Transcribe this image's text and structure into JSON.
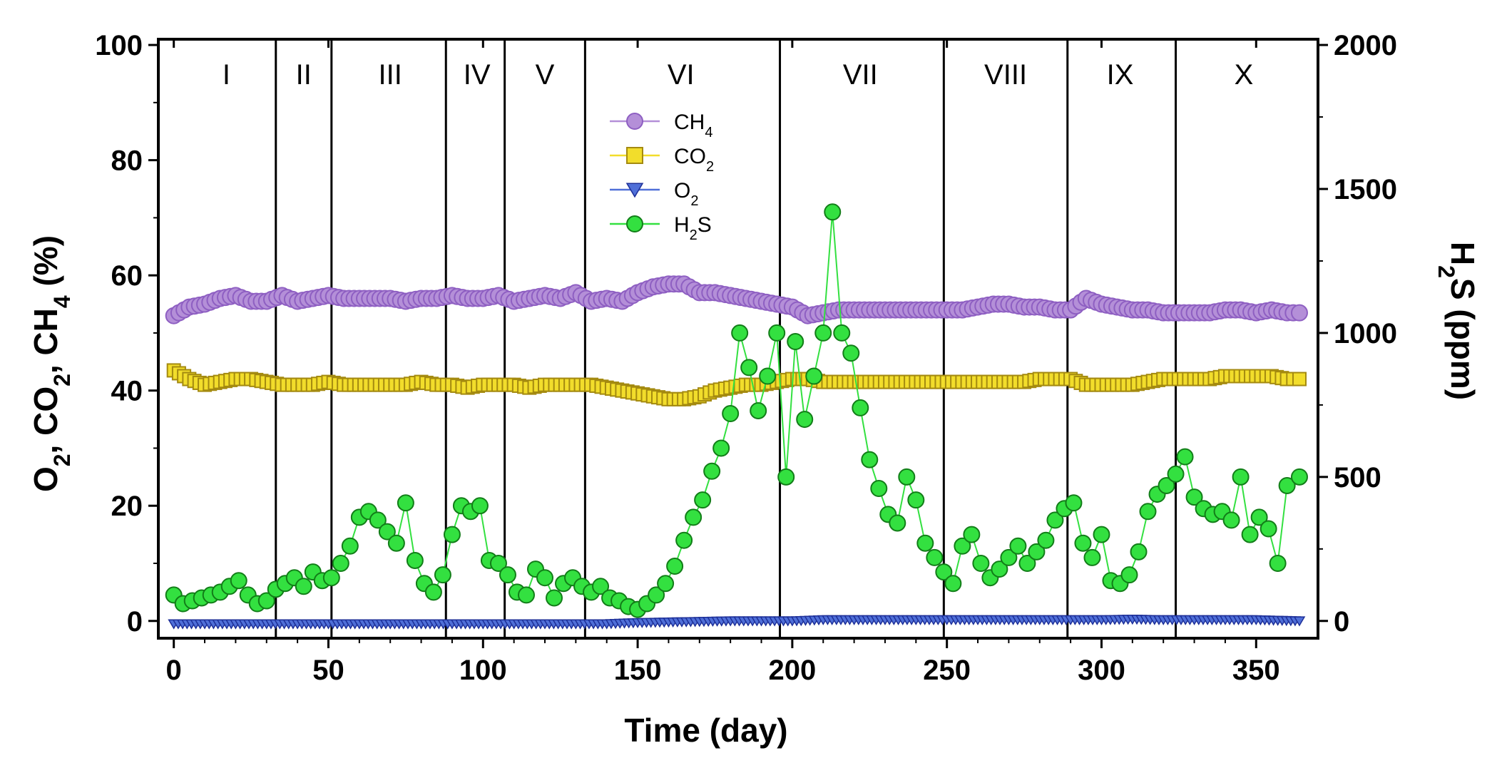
{
  "chart_data": {
    "type": "scatter",
    "xlabel": "Time (day)",
    "ylabel_left": {
      "parts": [
        "O",
        "2",
        ", CO",
        "2",
        ", CH",
        "4",
        " (%)"
      ]
    },
    "ylabel_right": {
      "parts": [
        "H",
        "2",
        "S (ppm)"
      ]
    },
    "xlim": [
      -5,
      370
    ],
    "ylim_left": [
      -3,
      101
    ],
    "ylim_right": [
      -60,
      2020
    ],
    "x_ticks": [
      0,
      50,
      100,
      150,
      200,
      250,
      300,
      350
    ],
    "y_ticks_left": [
      0,
      20,
      40,
      60,
      80,
      100
    ],
    "y_ticks_right": [
      0,
      500,
      1000,
      1500,
      2000
    ],
    "phase_boundaries": [
      33,
      51,
      88,
      107,
      133,
      196,
      249,
      289,
      324
    ],
    "phases": [
      {
        "label": "I",
        "center": 17
      },
      {
        "label": "II",
        "center": 42
      },
      {
        "label": "III",
        "center": 70
      },
      {
        "label": "IV",
        "center": 98
      },
      {
        "label": "V",
        "center": 120
      },
      {
        "label": "VI",
        "center": 164
      },
      {
        "label": "VII",
        "center": 222
      },
      {
        "label": "VIII",
        "center": 269
      },
      {
        "label": "IX",
        "center": 306
      },
      {
        "label": "X",
        "center": 346
      }
    ],
    "legend": [
      {
        "key": "CH4",
        "name": "CH",
        "sub": "4"
      },
      {
        "key": "CO2",
        "name": "CO",
        "sub": "2"
      },
      {
        "key": "O2",
        "name": "O",
        "sub": "2"
      },
      {
        "key": "H2S",
        "name": "H",
        "sub": "2",
        "suffix": "S"
      }
    ],
    "series": {
      "CH4": {
        "axis": "left",
        "marker": "circle",
        "color": "#b48fd8",
        "edge": "#8e5fc2",
        "points": [
          [
            0,
            53
          ],
          [
            5,
            54.5
          ],
          [
            10,
            55
          ],
          [
            15,
            56
          ],
          [
            20,
            56.5
          ],
          [
            25,
            55.5
          ],
          [
            30,
            55.5
          ],
          [
            35,
            56.5
          ],
          [
            40,
            55.5
          ],
          [
            45,
            56
          ],
          [
            50,
            56.5
          ],
          [
            55,
            56
          ],
          [
            60,
            56
          ],
          [
            65,
            56
          ],
          [
            70,
            56
          ],
          [
            75,
            55.5
          ],
          [
            80,
            56
          ],
          [
            85,
            56
          ],
          [
            90,
            56.5
          ],
          [
            95,
            56
          ],
          [
            100,
            56
          ],
          [
            105,
            56.5
          ],
          [
            110,
            55.5
          ],
          [
            115,
            56
          ],
          [
            120,
            56.5
          ],
          [
            125,
            56
          ],
          [
            130,
            57
          ],
          [
            135,
            55.5
          ],
          [
            140,
            56
          ],
          [
            145,
            55.5
          ],
          [
            150,
            57
          ],
          [
            155,
            58
          ],
          [
            160,
            58.5
          ],
          [
            165,
            58.5
          ],
          [
            170,
            57
          ],
          [
            175,
            57
          ],
          [
            180,
            56.5
          ],
          [
            185,
            56
          ],
          [
            190,
            55.5
          ],
          [
            195,
            55
          ],
          [
            200,
            54.5
          ],
          [
            205,
            53
          ],
          [
            210,
            53.5
          ],
          [
            215,
            54
          ],
          [
            220,
            54
          ],
          [
            225,
            54
          ],
          [
            230,
            54
          ],
          [
            235,
            54
          ],
          [
            240,
            54
          ],
          [
            245,
            54
          ],
          [
            250,
            54
          ],
          [
            255,
            54
          ],
          [
            260,
            54.5
          ],
          [
            265,
            55
          ],
          [
            270,
            55
          ],
          [
            275,
            54.5
          ],
          [
            280,
            54.5
          ],
          [
            285,
            54
          ],
          [
            290,
            54
          ],
          [
            295,
            56
          ],
          [
            300,
            55
          ],
          [
            305,
            54.5
          ],
          [
            310,
            54
          ],
          [
            315,
            54
          ],
          [
            320,
            53.5
          ],
          [
            325,
            53.5
          ],
          [
            330,
            53.5
          ],
          [
            335,
            53.5
          ],
          [
            340,
            54
          ],
          [
            345,
            54
          ],
          [
            350,
            53.5
          ],
          [
            355,
            54
          ],
          [
            360,
            53.5
          ],
          [
            364,
            53.5
          ]
        ]
      },
      "CO2": {
        "axis": "left",
        "marker": "square",
        "color": "#f2dd2b",
        "edge": "#a48a10",
        "points": [
          [
            0,
            43.5
          ],
          [
            5,
            42
          ],
          [
            10,
            41
          ],
          [
            15,
            41.5
          ],
          [
            20,
            42
          ],
          [
            25,
            42
          ],
          [
            30,
            41.5
          ],
          [
            35,
            41
          ],
          [
            40,
            41
          ],
          [
            45,
            41
          ],
          [
            50,
            41.5
          ],
          [
            55,
            41
          ],
          [
            60,
            41
          ],
          [
            65,
            41
          ],
          [
            70,
            41
          ],
          [
            75,
            41
          ],
          [
            80,
            41.5
          ],
          [
            85,
            41
          ],
          [
            90,
            41
          ],
          [
            95,
            40.5
          ],
          [
            100,
            41
          ],
          [
            105,
            41
          ],
          [
            110,
            41
          ],
          [
            115,
            40.5
          ],
          [
            120,
            41
          ],
          [
            125,
            41
          ],
          [
            130,
            41
          ],
          [
            135,
            41
          ],
          [
            140,
            40.5
          ],
          [
            145,
            40
          ],
          [
            150,
            39.5
          ],
          [
            155,
            39
          ],
          [
            160,
            38.5
          ],
          [
            165,
            38.5
          ],
          [
            170,
            39
          ],
          [
            175,
            40
          ],
          [
            180,
            40.5
          ],
          [
            185,
            41
          ],
          [
            190,
            41
          ],
          [
            195,
            41.5
          ],
          [
            200,
            42
          ],
          [
            205,
            42
          ],
          [
            210,
            41.5
          ],
          [
            215,
            41.5
          ],
          [
            220,
            41.5
          ],
          [
            225,
            41.5
          ],
          [
            230,
            41.5
          ],
          [
            235,
            41.5
          ],
          [
            240,
            41.5
          ],
          [
            245,
            41.5
          ],
          [
            250,
            41.5
          ],
          [
            255,
            41.5
          ],
          [
            260,
            41.5
          ],
          [
            265,
            41.5
          ],
          [
            270,
            41.5
          ],
          [
            275,
            41.5
          ],
          [
            280,
            42
          ],
          [
            285,
            42
          ],
          [
            290,
            42
          ],
          [
            295,
            41
          ],
          [
            300,
            41
          ],
          [
            305,
            41
          ],
          [
            310,
            41
          ],
          [
            315,
            41.5
          ],
          [
            320,
            42
          ],
          [
            325,
            42
          ],
          [
            330,
            42
          ],
          [
            335,
            42
          ],
          [
            340,
            42.5
          ],
          [
            345,
            42.5
          ],
          [
            350,
            42.5
          ],
          [
            355,
            42.5
          ],
          [
            360,
            42
          ],
          [
            364,
            42
          ]
        ]
      },
      "O2": {
        "axis": "left",
        "marker": "triangle-down",
        "color": "#4f6fd8",
        "edge": "#1d2f98",
        "points": [
          [
            0,
            -0.5
          ],
          [
            20,
            -0.5
          ],
          [
            40,
            -0.5
          ],
          [
            60,
            -0.5
          ],
          [
            80,
            -0.5
          ],
          [
            100,
            -0.5
          ],
          [
            120,
            -0.5
          ],
          [
            140,
            -0.5
          ],
          [
            150,
            -0.3
          ],
          [
            160,
            -0.2
          ],
          [
            170,
            -0.1
          ],
          [
            180,
            0
          ],
          [
            190,
            0
          ],
          [
            200,
            0
          ],
          [
            210,
            0.2
          ],
          [
            220,
            0.2
          ],
          [
            230,
            0.2
          ],
          [
            240,
            0.2
          ],
          [
            250,
            0.2
          ],
          [
            260,
            0.2
          ],
          [
            270,
            0.2
          ],
          [
            280,
            0.2
          ],
          [
            290,
            0.2
          ],
          [
            300,
            0.2
          ],
          [
            310,
            0.3
          ],
          [
            320,
            0.2
          ],
          [
            330,
            0.2
          ],
          [
            340,
            0.2
          ],
          [
            350,
            0.2
          ],
          [
            364,
            0
          ]
        ]
      },
      "H2S": {
        "axis": "right",
        "marker": "circle",
        "color": "#33e040",
        "edge": "#127d18",
        "points": [
          [
            0,
            90
          ],
          [
            3,
            60
          ],
          [
            6,
            70
          ],
          [
            9,
            80
          ],
          [
            12,
            90
          ],
          [
            15,
            100
          ],
          [
            18,
            120
          ],
          [
            21,
            140
          ],
          [
            24,
            90
          ],
          [
            27,
            60
          ],
          [
            30,
            70
          ],
          [
            33,
            110
          ],
          [
            36,
            130
          ],
          [
            39,
            150
          ],
          [
            42,
            120
          ],
          [
            45,
            170
          ],
          [
            48,
            140
          ],
          [
            51,
            150
          ],
          [
            54,
            200
          ],
          [
            57,
            260
          ],
          [
            60,
            360
          ],
          [
            63,
            380
          ],
          [
            66,
            350
          ],
          [
            69,
            310
          ],
          [
            72,
            270
          ],
          [
            75,
            410
          ],
          [
            78,
            210
          ],
          [
            81,
            130
          ],
          [
            84,
            100
          ],
          [
            87,
            160
          ],
          [
            90,
            300
          ],
          [
            93,
            400
          ],
          [
            96,
            380
          ],
          [
            99,
            400
          ],
          [
            102,
            210
          ],
          [
            105,
            200
          ],
          [
            108,
            160
          ],
          [
            111,
            100
          ],
          [
            114,
            90
          ],
          [
            117,
            180
          ],
          [
            120,
            150
          ],
          [
            123,
            80
          ],
          [
            126,
            130
          ],
          [
            129,
            150
          ],
          [
            132,
            120
          ],
          [
            135,
            100
          ],
          [
            138,
            120
          ],
          [
            141,
            80
          ],
          [
            144,
            70
          ],
          [
            147,
            50
          ],
          [
            150,
            40
          ],
          [
            153,
            60
          ],
          [
            156,
            90
          ],
          [
            159,
            130
          ],
          [
            162,
            190
          ],
          [
            165,
            280
          ],
          [
            168,
            360
          ],
          [
            171,
            420
          ],
          [
            174,
            520
          ],
          [
            177,
            600
          ],
          [
            180,
            720
          ],
          [
            183,
            1000
          ],
          [
            186,
            880
          ],
          [
            189,
            730
          ],
          [
            192,
            850
          ],
          [
            195,
            1000
          ],
          [
            198,
            500
          ],
          [
            201,
            970
          ],
          [
            204,
            700
          ],
          [
            207,
            850
          ],
          [
            210,
            1000
          ],
          [
            213,
            1420
          ],
          [
            216,
            1000
          ],
          [
            219,
            930
          ],
          [
            222,
            740
          ],
          [
            225,
            560
          ],
          [
            228,
            460
          ],
          [
            231,
            370
          ],
          [
            234,
            340
          ],
          [
            237,
            500
          ],
          [
            240,
            420
          ],
          [
            243,
            270
          ],
          [
            246,
            220
          ],
          [
            249,
            170
          ],
          [
            252,
            130
          ],
          [
            255,
            260
          ],
          [
            258,
            300
          ],
          [
            261,
            200
          ],
          [
            264,
            150
          ],
          [
            267,
            180
          ],
          [
            270,
            220
          ],
          [
            273,
            260
          ],
          [
            276,
            200
          ],
          [
            279,
            240
          ],
          [
            282,
            280
          ],
          [
            285,
            350
          ],
          [
            288,
            390
          ],
          [
            291,
            410
          ],
          [
            294,
            270
          ],
          [
            297,
            220
          ],
          [
            300,
            300
          ],
          [
            303,
            140
          ],
          [
            306,
            130
          ],
          [
            309,
            160
          ],
          [
            312,
            240
          ],
          [
            315,
            380
          ],
          [
            318,
            440
          ],
          [
            321,
            470
          ],
          [
            324,
            510
          ],
          [
            327,
            570
          ],
          [
            330,
            430
          ],
          [
            333,
            390
          ],
          [
            336,
            370
          ],
          [
            339,
            380
          ],
          [
            342,
            350
          ],
          [
            345,
            500
          ],
          [
            348,
            300
          ],
          [
            351,
            360
          ],
          [
            354,
            320
          ],
          [
            357,
            200
          ],
          [
            360,
            470
          ],
          [
            364,
            500
          ]
        ]
      }
    }
  }
}
